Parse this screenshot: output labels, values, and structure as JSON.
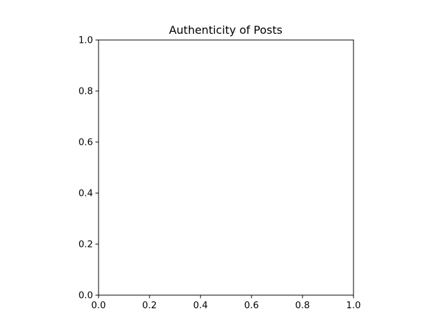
{
  "chart_data": {
    "type": "scatter",
    "title": "Authenticity of Posts",
    "xlabel": "",
    "ylabel": "",
    "xlim": [
      0,
      1
    ],
    "ylim": [
      0,
      1
    ],
    "x_ticks": [
      "0.0",
      "0.2",
      "0.4",
      "0.6",
      "0.8",
      "1.0"
    ],
    "y_ticks": [
      "0.0",
      "0.2",
      "0.4",
      "0.6",
      "0.8",
      "1.0"
    ],
    "series": [],
    "grid": false,
    "legend": false
  }
}
